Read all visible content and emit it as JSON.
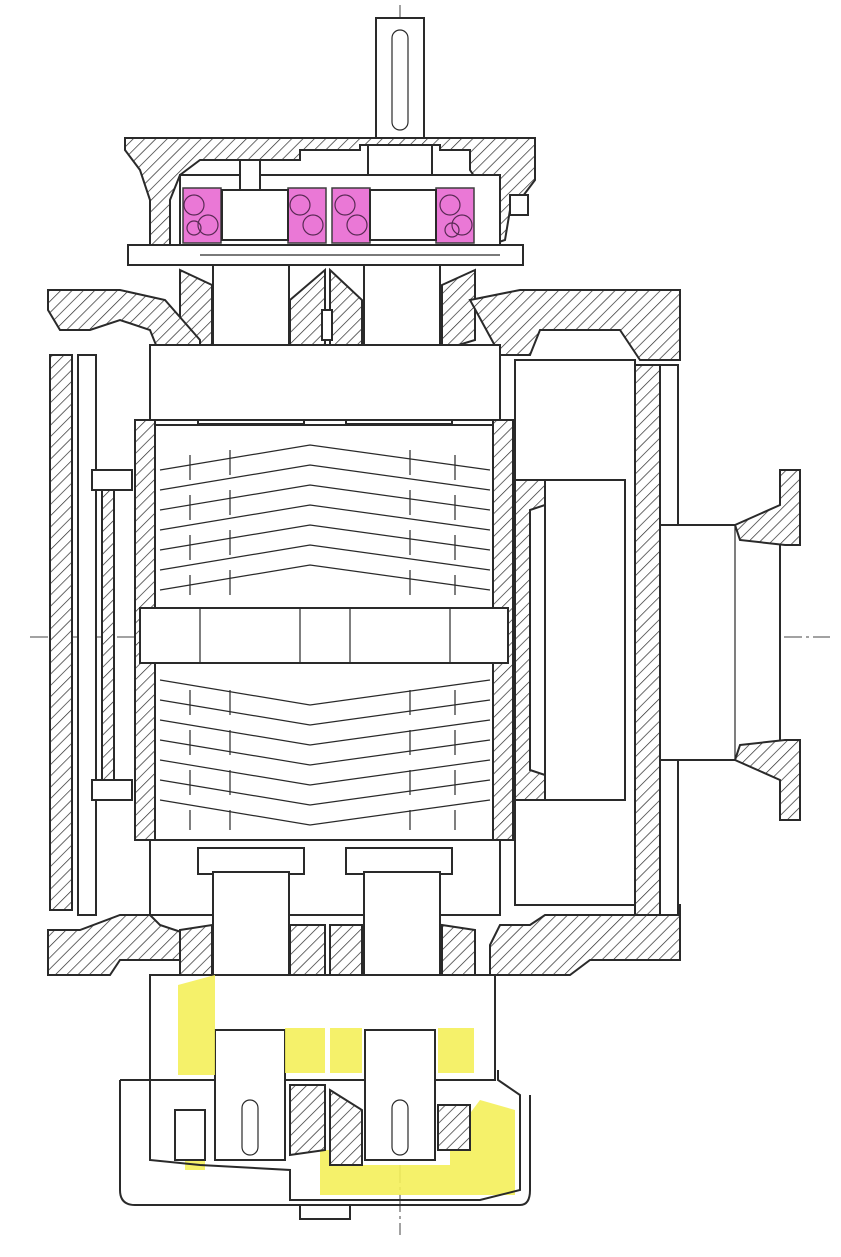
{
  "drawing": {
    "colors": {
      "line": "#2a2a2a",
      "highlight_upper_bearings": "#e86ad2",
      "highlight_lower_bearings": "#f4f05a",
      "paper": "#ffffff"
    },
    "parts": {
      "drive_shaft": "drive-shaft",
      "upper_bearing_cover": "upper-bearing-cover",
      "upper_bearings": "upper-bearings",
      "upper_seals": "upper-seals",
      "rotor_housing": "rotor-housing",
      "rotors": "screw-rotors",
      "discharge_flange": "discharge-flange",
      "lower_seals": "lower-seals",
      "lower_bearings": "lower-bearings",
      "gear_cover": "gear-cover"
    }
  }
}
